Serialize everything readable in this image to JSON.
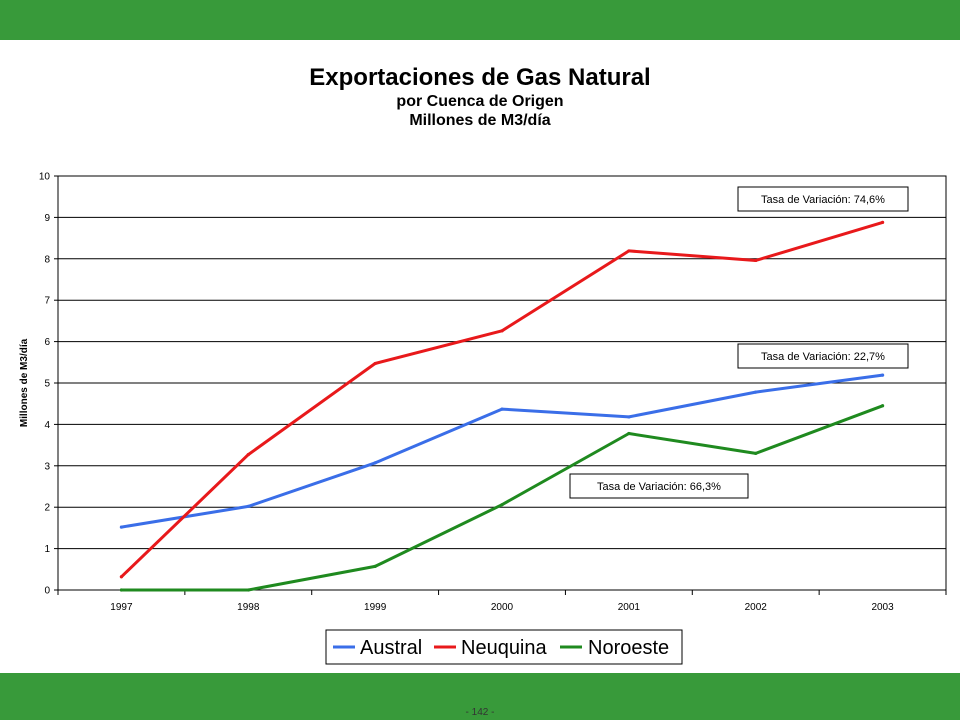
{
  "header": {
    "title": "Exportaciones de Gas Natural",
    "subtitle": "por Cuenca de Origen",
    "units": "Millones de M3/día"
  },
  "footer": {
    "page_number": "- 142 -"
  },
  "colors": {
    "band": "#389a3a",
    "austral": "#3a6ee8",
    "neuquina": "#e8191b",
    "noroeste": "#1f8a1f",
    "grid": "#000000"
  },
  "chart_data": {
    "type": "line",
    "title": "Exportaciones de Gas Natural",
    "subtitle": "por Cuenca de Origen / Millones de M3/día",
    "xlabel": "",
    "ylabel": "Millones de M3/día",
    "ylim": [
      0,
      10
    ],
    "yticks": [
      0,
      1,
      2,
      3,
      4,
      5,
      6,
      7,
      8,
      9,
      10
    ],
    "categories": [
      "1997",
      "1998",
      "1999",
      "2000",
      "2001",
      "2002",
      "2003"
    ],
    "grid": true,
    "legend_position": "bottom",
    "series": [
      {
        "name": "Austral",
        "color": "#3a6ee8",
        "values": [
          1.52,
          2.02,
          3.07,
          4.37,
          4.18,
          4.78,
          5.19
        ]
      },
      {
        "name": "Neuquina",
        "color": "#e8191b",
        "values": [
          0.32,
          3.27,
          5.47,
          6.26,
          8.19,
          7.96,
          8.88
        ]
      },
      {
        "name": "Noroeste",
        "color": "#1f8a1f",
        "values": [
          0.0,
          0.0,
          0.57,
          2.06,
          3.78,
          3.3,
          4.45
        ]
      }
    ],
    "annotations": [
      {
        "text": "Tasa de Variación: 74,6%",
        "series": "Neuquina"
      },
      {
        "text": "Tasa de Variación: 22,7%",
        "series": "Austral"
      },
      {
        "text": "Tasa de Variación: 66,3%",
        "series": "Noroeste"
      }
    ]
  }
}
